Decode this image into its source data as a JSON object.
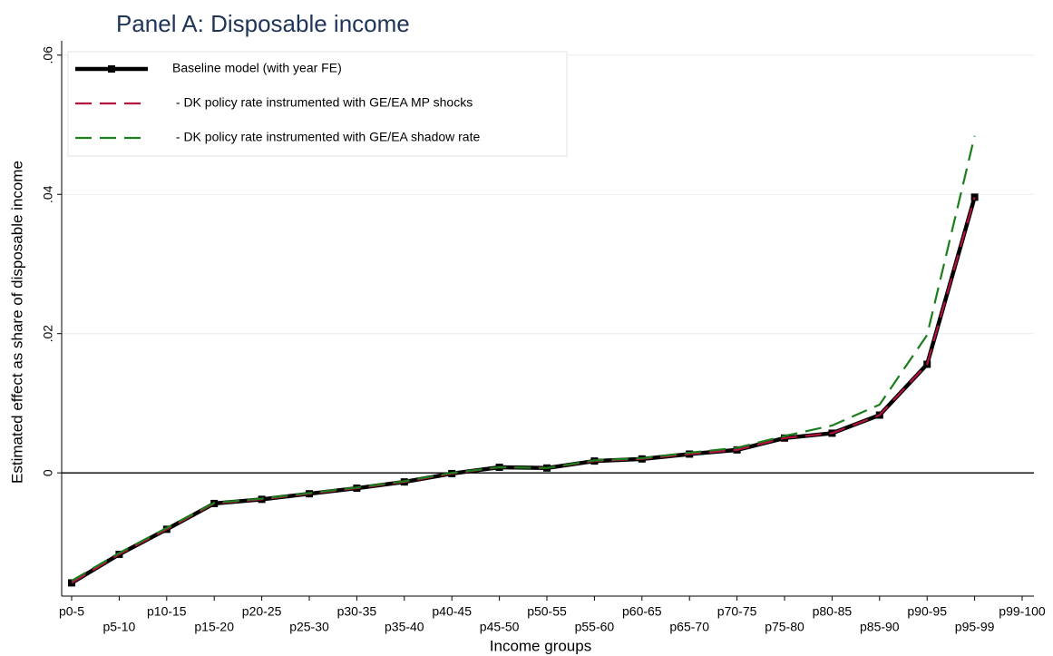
{
  "chart_data": {
    "type": "line",
    "title": "Panel A: Disposable income",
    "x_label": "Income groups",
    "y_label": "Estimated effect as share of disposable income",
    "categories": [
      "p0-5",
      "p5-10",
      "p10-15",
      "p15-20",
      "p20-25",
      "p25-30",
      "p30-35",
      "p35-40",
      "p40-45",
      "p45-50",
      "p50-55",
      "p55-60",
      "p60-65",
      "p65-70",
      "p70-75",
      "p75-80",
      "p80-85",
      "p85-90",
      "p90-95",
      "p95-99",
      "p99-100"
    ],
    "series": [
      {
        "name": "Baseline model (with year FE)",
        "color": "#000000",
        "style": "solid",
        "markers": true,
        "values": [
          -0.0158,
          -0.0117,
          -0.0081,
          -0.0044,
          -0.0038,
          -0.003,
          -0.0022,
          -0.0013,
          -0.0001,
          0.0008,
          0.0007,
          0.0017,
          0.002,
          0.0027,
          0.0033,
          0.005,
          0.0057,
          0.0083,
          0.0156,
          0.0396,
          null
        ]
      },
      {
        "name": " - DK policy rate instrumented with GE/EA MP shocks",
        "color": "#b3123f",
        "style": "dashed",
        "markers": false,
        "values": [
          -0.0158,
          -0.0117,
          -0.0081,
          -0.0044,
          -0.0038,
          -0.003,
          -0.0022,
          -0.0013,
          -0.0001,
          0.0008,
          0.0007,
          0.0017,
          0.002,
          0.0027,
          0.0033,
          0.005,
          0.0057,
          0.0083,
          0.0156,
          0.0396,
          null
        ]
      },
      {
        "name": " - DK policy rate instrumented with GE/EA shadow rate",
        "color": "#1b7d1b",
        "style": "dashed",
        "markers": false,
        "values": [
          -0.0155,
          -0.0115,
          -0.0079,
          -0.0043,
          -0.0037,
          -0.0029,
          -0.0021,
          -0.0012,
          0.0,
          0.0008,
          0.0007,
          0.0018,
          0.0021,
          0.0029,
          0.0036,
          0.0053,
          0.0068,
          0.0098,
          0.0198,
          0.0484,
          null
        ]
      }
    ],
    "ylim": [
      -0.0177,
      0.0614
    ],
    "yticks": [
      0,
      {
        "value": 0.02,
        "label": ".02"
      },
      {
        "value": 0.04,
        "label": ".04"
      },
      {
        "value": 0.06,
        "label": ".06"
      }
    ],
    "grid": true,
    "legend": "top-left"
  }
}
